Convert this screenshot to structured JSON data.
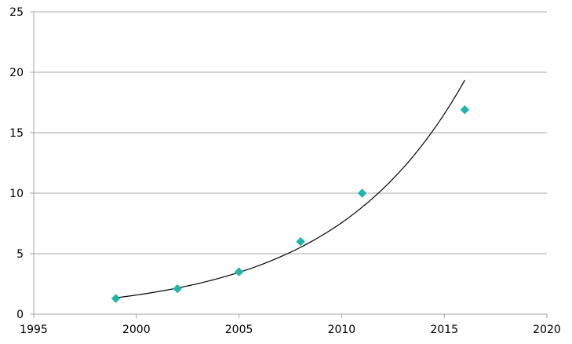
{
  "chart_data": {
    "type": "scatter",
    "title": "",
    "xlabel": "",
    "ylabel": "",
    "xlim": [
      1995,
      2020
    ],
    "ylim": [
      0,
      25
    ],
    "x_ticks": [
      "1995",
      "2000",
      "2005",
      "2010",
      "2015",
      "2020"
    ],
    "y_ticks": [
      "0",
      "5",
      "10",
      "15",
      "20",
      "25"
    ],
    "grid": "horizontal",
    "legend": "none",
    "marker": "diamond",
    "marker_color": "#1fb5ad",
    "series": [
      {
        "points": [
          {
            "x": 1999,
            "y": 1.3
          },
          {
            "x": 2002,
            "y": 2.1
          },
          {
            "x": 2005,
            "y": 3.5
          },
          {
            "x": 2008,
            "y": 6.0
          },
          {
            "x": 2011,
            "y": 10.0
          },
          {
            "x": 2016,
            "y": 16.9
          }
        ]
      }
    ],
    "trendline": {
      "type": "exponential",
      "color": "#000000",
      "x_start": 1999,
      "x_end": 2016,
      "y_start": 1.35,
      "y_end": 19.35
    }
  }
}
